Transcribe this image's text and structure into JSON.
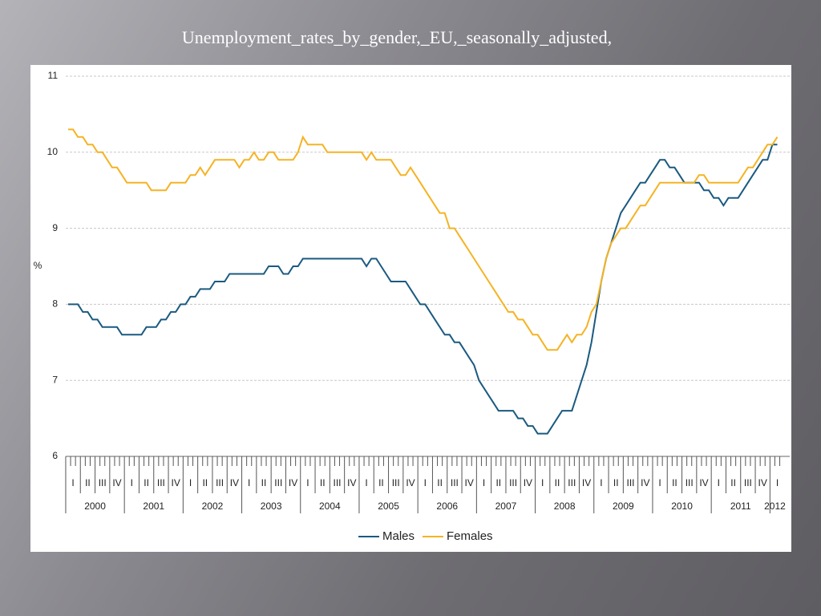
{
  "title": "Unemployment_rates_by_gender,_EU,_seasonally_adjusted,",
  "chart_data": {
    "type": "line",
    "y_label": "%",
    "categories": [
      null,
      "I",
      null,
      null,
      "II",
      null,
      null,
      "III",
      null,
      null,
      "IV",
      null,
      null,
      "I",
      null,
      null,
      "II",
      null,
      null,
      "III",
      null,
      null,
      "IV",
      null,
      null,
      "I",
      null,
      null,
      "II",
      null,
      null,
      "III",
      null,
      null,
      "IV",
      null,
      null,
      "I",
      null,
      null,
      "II",
      null,
      null,
      "III",
      null,
      null,
      "IV",
      null,
      null,
      "I",
      null,
      null,
      "II",
      null,
      null,
      "III",
      null,
      null,
      "IV",
      null,
      null,
      "I",
      null,
      null,
      "II",
      null,
      null,
      "III",
      null,
      null,
      "IV",
      null,
      null,
      "I",
      null,
      null,
      "II",
      null,
      null,
      "III",
      null,
      null,
      "IV",
      null,
      null,
      "I",
      null,
      null,
      "II",
      null,
      null,
      "III",
      null,
      null,
      "IV",
      null,
      null,
      "I",
      null,
      null,
      "II",
      null,
      null,
      "III",
      null,
      null,
      "IV",
      null,
      null,
      "I",
      null,
      null,
      "II",
      null,
      null,
      "III",
      null,
      null,
      "IV",
      null,
      null,
      "I",
      null,
      null,
      "II",
      null,
      null,
      "III",
      null,
      null,
      "IV",
      null,
      null,
      "I",
      null,
      null,
      "II",
      null,
      null,
      "III",
      null,
      null,
      "IV",
      null,
      null,
      "I"
    ],
    "years": [
      "2000",
      "2001",
      "2002",
      "2003",
      "2004",
      "2005",
      "2006",
      "2007",
      "2008",
      "2009",
      "2010",
      "2011",
      "2012"
    ],
    "series": [
      {
        "name": "Males",
        "color": "#1a5a80",
        "values": [
          8.0,
          8.0,
          8.0,
          7.9,
          7.9,
          7.8,
          7.8,
          7.7,
          7.7,
          7.7,
          7.7,
          7.6,
          7.6,
          7.6,
          7.6,
          7.6,
          7.7,
          7.7,
          7.7,
          7.8,
          7.8,
          7.9,
          7.9,
          8.0,
          8.0,
          8.1,
          8.1,
          8.2,
          8.2,
          8.2,
          8.3,
          8.3,
          8.3,
          8.4,
          8.4,
          8.4,
          8.4,
          8.4,
          8.4,
          8.4,
          8.4,
          8.5,
          8.5,
          8.5,
          8.4,
          8.4,
          8.5,
          8.5,
          8.6,
          8.6,
          8.6,
          8.6,
          8.6,
          8.6,
          8.6,
          8.6,
          8.6,
          8.6,
          8.6,
          8.6,
          8.6,
          8.5,
          8.6,
          8.6,
          8.5,
          8.4,
          8.3,
          8.3,
          8.3,
          8.3,
          8.2,
          8.1,
          8.0,
          8.0,
          7.9,
          7.8,
          7.7,
          7.6,
          7.6,
          7.5,
          7.5,
          7.4,
          7.3,
          7.2,
          7.0,
          6.9,
          6.8,
          6.7,
          6.6,
          6.6,
          6.6,
          6.6,
          6.5,
          6.5,
          6.4,
          6.4,
          6.3,
          6.3,
          6.3,
          6.4,
          6.5,
          6.6,
          6.6,
          6.6,
          6.8,
          7.0,
          7.2,
          7.5,
          7.9,
          8.3,
          8.6,
          8.8,
          9.0,
          9.2,
          9.3,
          9.4,
          9.5,
          9.6,
          9.6,
          9.7,
          9.8,
          9.9,
          9.9,
          9.8,
          9.8,
          9.7,
          9.6,
          9.6,
          9.6,
          9.6,
          9.5,
          9.5,
          9.4,
          9.4,
          9.3,
          9.4,
          9.4,
          9.4,
          9.5,
          9.6,
          9.7,
          9.8,
          9.9,
          9.9,
          10.1,
          10.1
        ]
      },
      {
        "name": "Females",
        "color": "#f5b323",
        "values": [
          10.3,
          10.3,
          10.2,
          10.2,
          10.1,
          10.1,
          10.0,
          10.0,
          9.9,
          9.8,
          9.8,
          9.7,
          9.6,
          9.6,
          9.6,
          9.6,
          9.6,
          9.5,
          9.5,
          9.5,
          9.5,
          9.6,
          9.6,
          9.6,
          9.6,
          9.7,
          9.7,
          9.8,
          9.7,
          9.8,
          9.9,
          9.9,
          9.9,
          9.9,
          9.9,
          9.8,
          9.9,
          9.9,
          10.0,
          9.9,
          9.9,
          10.0,
          10.0,
          9.9,
          9.9,
          9.9,
          9.9,
          10.0,
          10.2,
          10.1,
          10.1,
          10.1,
          10.1,
          10.0,
          10.0,
          10.0,
          10.0,
          10.0,
          10.0,
          10.0,
          10.0,
          9.9,
          10.0,
          9.9,
          9.9,
          9.9,
          9.9,
          9.8,
          9.7,
          9.7,
          9.8,
          9.7,
          9.6,
          9.5,
          9.4,
          9.3,
          9.2,
          9.2,
          9.0,
          9.0,
          8.9,
          8.8,
          8.7,
          8.6,
          8.5,
          8.4,
          8.3,
          8.2,
          8.1,
          8.0,
          7.9,
          7.9,
          7.8,
          7.8,
          7.7,
          7.6,
          7.6,
          7.5,
          7.4,
          7.4,
          7.4,
          7.5,
          7.6,
          7.5,
          7.6,
          7.6,
          7.7,
          7.9,
          8.0,
          8.3,
          8.6,
          8.8,
          8.9,
          9.0,
          9.0,
          9.1,
          9.2,
          9.3,
          9.3,
          9.4,
          9.5,
          9.6,
          9.6,
          9.6,
          9.6,
          9.6,
          9.6,
          9.6,
          9.6,
          9.7,
          9.7,
          9.6,
          9.6,
          9.6,
          9.6,
          9.6,
          9.6,
          9.6,
          9.7,
          9.8,
          9.8,
          9.9,
          10.0,
          10.1,
          10.1,
          10.2
        ]
      }
    ],
    "ylim": [
      6,
      11
    ],
    "yticks": [
      6,
      7,
      8,
      9,
      10,
      11
    ],
    "grid": true
  }
}
